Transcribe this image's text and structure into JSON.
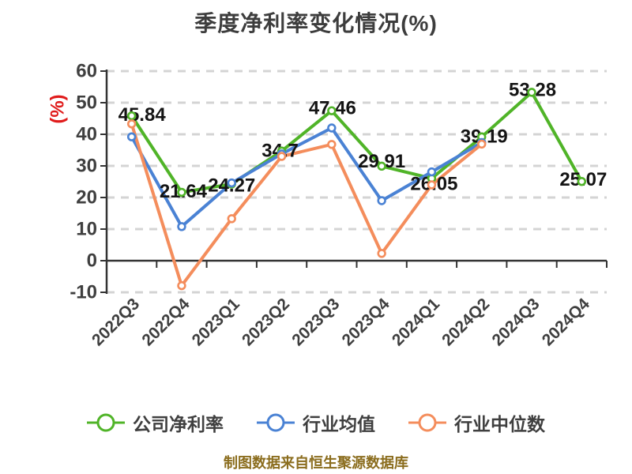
{
  "chart_data": {
    "type": "line",
    "title": "季度净利率变化情况(%)",
    "title_color": "#3d3d3d",
    "categories": [
      "2022Q3",
      "2022Q4",
      "2023Q1",
      "2023Q2",
      "2023Q3",
      "2023Q4",
      "2024Q1",
      "2024Q2",
      "2024Q3",
      "2024Q4"
    ],
    "series": [
      {
        "key": "company-net-margin",
        "name": "公司净利率",
        "color": "#50b428",
        "values": [
          45.84,
          21.64,
          24.27,
          34.7,
          47.46,
          29.91,
          26.05,
          39.19,
          53.28,
          25.07
        ],
        "labels": [
          "45.84",
          "21.64",
          "24.27",
          "34.7",
          "47.46",
          "29.91",
          "26.05",
          "39.19",
          "53.28",
          "25.07"
        ]
      },
      {
        "key": "industry-mean",
        "name": "行业均值",
        "color": "#4a82d4",
        "values": [
          39.2,
          10.8,
          24.6,
          33.8,
          42.0,
          19.0,
          28.1,
          37.4,
          null,
          null
        ],
        "labels": null
      },
      {
        "key": "industry-median",
        "name": "行业中位数",
        "color": "#f48d5c",
        "values": [
          43.3,
          -7.9,
          13.3,
          33.0,
          36.8,
          2.3,
          24.0,
          36.9,
          null,
          null
        ],
        "labels": null
      }
    ],
    "yaxis": {
      "min": -10,
      "max": 60,
      "step": 10,
      "ticks": [
        60,
        50,
        40,
        30,
        20,
        10,
        0,
        -10
      ],
      "unit_label": "(%)",
      "unit_color": "#e01b1b",
      "label_color": "#3f3f3f"
    },
    "xaxis": {
      "label_color": "#3f3f3f",
      "label_rotation": 45
    },
    "grid": {
      "style": "dashed",
      "color": "#d4d4d4",
      "on": true
    },
    "axis_color": "#333333",
    "data_label_color": "#141414",
    "legend_position": "bottom"
  },
  "footer": {
    "text": "制图数据来自恒生聚源数据库",
    "color": "#8b6d1e"
  }
}
